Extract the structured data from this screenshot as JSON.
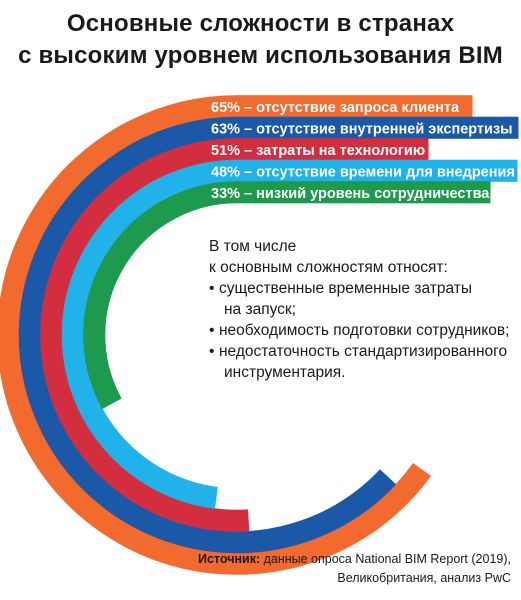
{
  "title": {
    "line1": "Основные сложности в странах",
    "line2": "с высоким уровнем использования BIM"
  },
  "chart_data": {
    "type": "radial-bar",
    "series": [
      {
        "value": 65,
        "label": "65% – отсутствие запроса клиента",
        "color": "#f26a2e"
      },
      {
        "value": 63,
        "label": "63% – отсутствие внутренней экспертизы",
        "color": "#1b59a8"
      },
      {
        "value": 51,
        "label": "51% – затраты на технологию",
        "color": "#d22e3f"
      },
      {
        "value": 48,
        "label": "48% – отсутствие времени для внедрения",
        "color": "#20b2e8"
      },
      {
        "value": 33,
        "label": "33% – низкий уровень сотрудничества",
        "color": "#1e9a4f"
      }
    ]
  },
  "note": {
    "intro1": "В том числе",
    "intro2": "к основным сложностям относят:",
    "items": [
      {
        "l1": "существенные временные затраты",
        "l2": "на запуск;"
      },
      {
        "l1": "необходимость подготовки сотрудников;",
        "l2": ""
      },
      {
        "l1": "недостаточность стандартизированного",
        "l2": "инструментария."
      }
    ]
  },
  "source": {
    "label": "Источник:",
    "text1": " данные опроса National BIM Report (2019),",
    "text2": "Великобритания, анализ PwC"
  }
}
